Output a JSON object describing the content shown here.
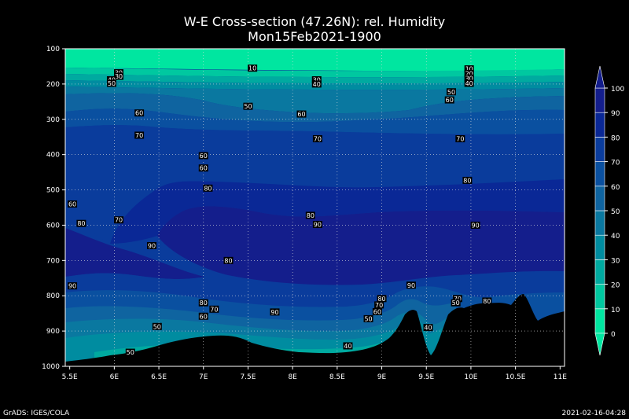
{
  "chart_data": {
    "type": "contour",
    "title": "W-E Cross-section (47.26N): rel. Humidity",
    "subtitle": "Mon15Feb2021-1900",
    "xlabel": "",
    "ylabel": "",
    "x_ticks": [
      "5.5E",
      "6E",
      "6.5E",
      "7E",
      "7.5E",
      "8E",
      "8.5E",
      "9E",
      "9.5E",
      "10E",
      "10.5E",
      "11E"
    ],
    "x_values": [
      5.5,
      6,
      6.5,
      7,
      7.5,
      8,
      8.5,
      9,
      9.5,
      10,
      10.5,
      11
    ],
    "y_ticks": [
      "100",
      "200",
      "300",
      "400",
      "500",
      "600",
      "700",
      "800",
      "900",
      "1000"
    ],
    "y_values": [
      100,
      200,
      300,
      400,
      500,
      600,
      700,
      800,
      900,
      1000
    ],
    "xlim": [
      5.45,
      11.05
    ],
    "ylim": [
      1000,
      100
    ],
    "grid": true,
    "colorbar": {
      "levels": [
        "0",
        "10",
        "20",
        "30",
        "40",
        "50",
        "60",
        "70",
        "80",
        "90",
        "100"
      ],
      "colors": [
        "#00e6a0",
        "#00c8a0",
        "#00aaa0",
        "#008ca0",
        "#0a78a0",
        "#0f64a0",
        "#0a50a0",
        "#0a3c9c",
        "#0a2896",
        "#141e8c"
      ]
    },
    "contour_labels": [
      {
        "x": 6.05,
        "y": 168,
        "t": "30"
      },
      {
        "x": 6.05,
        "y": 178,
        "t": "30"
      },
      {
        "x": 5.97,
        "y": 188,
        "t": "40"
      },
      {
        "x": 5.97,
        "y": 198,
        "t": "50"
      },
      {
        "x": 7.55,
        "y": 155,
        "t": "10"
      },
      {
        "x": 8.27,
        "y": 188,
        "t": "30"
      },
      {
        "x": 8.27,
        "y": 200,
        "t": "40"
      },
      {
        "x": 9.98,
        "y": 157,
        "t": "10"
      },
      {
        "x": 9.98,
        "y": 170,
        "t": "20"
      },
      {
        "x": 9.98,
        "y": 183,
        "t": "30"
      },
      {
        "x": 9.98,
        "y": 198,
        "t": "40"
      },
      {
        "x": 9.78,
        "y": 222,
        "t": "50"
      },
      {
        "x": 9.76,
        "y": 245,
        "t": "60"
      },
      {
        "x": 7.5,
        "y": 263,
        "t": "50"
      },
      {
        "x": 6.28,
        "y": 282,
        "t": "60"
      },
      {
        "x": 8.1,
        "y": 285,
        "t": "60"
      },
      {
        "x": 6.28,
        "y": 345,
        "t": "70"
      },
      {
        "x": 8.28,
        "y": 355,
        "t": "70"
      },
      {
        "x": 9.88,
        "y": 355,
        "t": "70"
      },
      {
        "x": 7.0,
        "y": 403,
        "t": "60"
      },
      {
        "x": 7.0,
        "y": 438,
        "t": "60"
      },
      {
        "x": 7.05,
        "y": 495,
        "t": "80"
      },
      {
        "x": 9.96,
        "y": 473,
        "t": "80"
      },
      {
        "x": 5.53,
        "y": 540,
        "t": "60"
      },
      {
        "x": 6.05,
        "y": 585,
        "t": "70"
      },
      {
        "x": 5.63,
        "y": 595,
        "t": "80"
      },
      {
        "x": 8.2,
        "y": 572,
        "t": "80"
      },
      {
        "x": 8.28,
        "y": 598,
        "t": "90"
      },
      {
        "x": 10.05,
        "y": 600,
        "t": "90"
      },
      {
        "x": 6.42,
        "y": 658,
        "t": "90"
      },
      {
        "x": 7.28,
        "y": 700,
        "t": "80"
      },
      {
        "x": 5.53,
        "y": 772,
        "t": "90"
      },
      {
        "x": 9.33,
        "y": 770,
        "t": "90"
      },
      {
        "x": 7.0,
        "y": 820,
        "t": "80"
      },
      {
        "x": 7.12,
        "y": 838,
        "t": "70"
      },
      {
        "x": 7.0,
        "y": 858,
        "t": "60"
      },
      {
        "x": 7.8,
        "y": 846,
        "t": "90"
      },
      {
        "x": 9.0,
        "y": 808,
        "t": "80"
      },
      {
        "x": 8.97,
        "y": 826,
        "t": "70"
      },
      {
        "x": 8.95,
        "y": 845,
        "t": "60"
      },
      {
        "x": 8.85,
        "y": 865,
        "t": "50"
      },
      {
        "x": 9.85,
        "y": 808,
        "t": "70"
      },
      {
        "x": 9.83,
        "y": 820,
        "t": "50"
      },
      {
        "x": 10.18,
        "y": 815,
        "t": "80"
      },
      {
        "x": 6.48,
        "y": 887,
        "t": "50"
      },
      {
        "x": 9.52,
        "y": 890,
        "t": "40"
      },
      {
        "x": 6.18,
        "y": 960,
        "t": "50"
      },
      {
        "x": 8.62,
        "y": 942,
        "t": "40"
      }
    ]
  },
  "footer": {
    "left": "GrADS: IGES/COLA",
    "right": "2021-02-16-04:28"
  }
}
